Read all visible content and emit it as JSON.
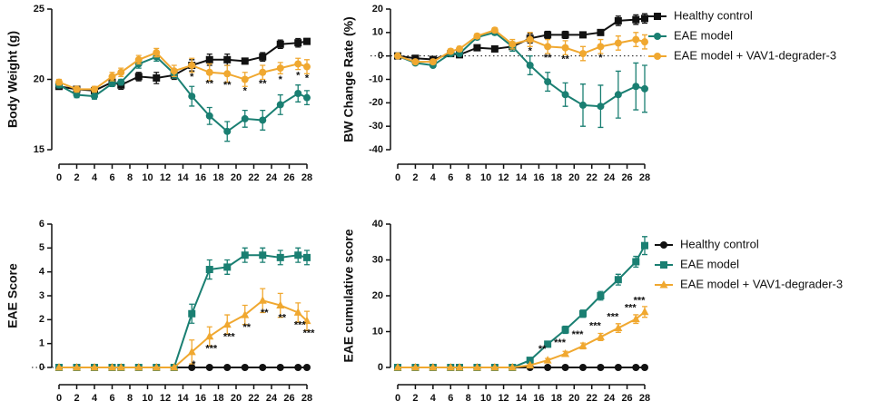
{
  "chart_data": [
    {
      "type": "line",
      "ylabel": "Body Weight (g)",
      "x": [
        0,
        2,
        4,
        6,
        7,
        9,
        11,
        13,
        15,
        17,
        19,
        21,
        23,
        25,
        27,
        28
      ],
      "xlim": [
        0,
        28
      ],
      "xticks": [
        0,
        2,
        4,
        6,
        8,
        10,
        12,
        14,
        16,
        18,
        20,
        22,
        24,
        26,
        28
      ],
      "ylim": [
        15,
        25
      ],
      "yticks": [
        15,
        20,
        25
      ],
      "series": [
        {
          "color": "#111111",
          "marker": "square",
          "values": [
            19.5,
            19.3,
            19.2,
            19.8,
            19.6,
            20.2,
            20.1,
            20.3,
            21.0,
            21.4,
            21.4,
            21.3,
            21.6,
            22.5,
            22.6,
            22.7
          ],
          "errors": [
            0.2,
            0.2,
            0.2,
            0.3,
            0.3,
            0.3,
            0.4,
            0.3,
            0.4,
            0.4,
            0.4,
            0.2,
            0.3,
            0.3,
            0.3,
            0.2
          ]
        },
        {
          "color": "#1a7f72",
          "marker": "circle",
          "values": [
            19.6,
            18.9,
            18.8,
            19.7,
            19.8,
            21.1,
            21.6,
            20.4,
            18.8,
            17.4,
            16.3,
            17.2,
            17.1,
            18.2,
            19.0,
            18.7
          ],
          "errors": [
            0.2,
            0.2,
            0.2,
            0.2,
            0.2,
            0.3,
            0.3,
            0.3,
            0.7,
            0.6,
            0.7,
            0.6,
            0.7,
            0.7,
            0.6,
            0.5
          ]
        },
        {
          "color": "#f0a830",
          "marker": "circle",
          "values": [
            19.8,
            19.3,
            19.3,
            20.2,
            20.5,
            21.4,
            21.9,
            20.6,
            21.0,
            20.5,
            20.4,
            20.0,
            20.5,
            20.8,
            21.1,
            20.9
          ],
          "errors": [
            0.2,
            0.2,
            0.2,
            0.3,
            0.3,
            0.3,
            0.3,
            0.4,
            0.5,
            0.6,
            0.6,
            0.5,
            0.5,
            0.4,
            0.4,
            0.5
          ]
        }
      ],
      "annotations": [
        {
          "x": 15,
          "text": "*"
        },
        {
          "x": 17,
          "text": "**"
        },
        {
          "x": 19,
          "text": "**"
        },
        {
          "x": 21,
          "text": "*"
        },
        {
          "x": 23,
          "text": "**"
        },
        {
          "x": 25,
          "text": "*"
        },
        {
          "x": 27,
          "text": "*"
        },
        {
          "x": 28,
          "text": "*"
        }
      ]
    },
    {
      "type": "line",
      "ylabel": "BW Change Rate (%)",
      "x": [
        0,
        2,
        4,
        6,
        7,
        9,
        11,
        13,
        15,
        17,
        19,
        21,
        23,
        25,
        27,
        28
      ],
      "xlim": [
        0,
        28
      ],
      "xticks": [
        0,
        2,
        4,
        6,
        8,
        10,
        12,
        14,
        16,
        18,
        20,
        22,
        24,
        26,
        28
      ],
      "ylim": [
        -40,
        20
      ],
      "yticks": [
        -40,
        -30,
        -20,
        -10,
        0,
        10,
        20
      ],
      "zero_line": true,
      "legend": "right",
      "series": [
        {
          "name": "Healthy control",
          "color": "#111111",
          "marker": "square",
          "values": [
            0,
            -1,
            -1.5,
            1,
            0.5,
            3.5,
            3,
            4,
            7.5,
            9,
            9,
            9,
            10,
            15,
            15.5,
            16
          ],
          "errors": [
            0,
            0.5,
            0.5,
            0.5,
            0.5,
            0.5,
            1,
            1,
            2,
            1.5,
            1.5,
            1,
            1,
            2,
            2,
            2
          ]
        },
        {
          "name": "EAE model",
          "color": "#1a7f72",
          "marker": "circle",
          "values": [
            0,
            -3,
            -4,
            1,
            1,
            8,
            10,
            4,
            -4,
            -11,
            -16.5,
            -21,
            -21.5,
            -16.5,
            -13,
            -14
          ],
          "errors": [
            0,
            0.5,
            0.5,
            1,
            1,
            1,
            1,
            2,
            4,
            4,
            5,
            9,
            9,
            10,
            10,
            10
          ]
        },
        {
          "name": "EAE model + VAV1-degrader-3",
          "color": "#f0a830",
          "marker": "circle",
          "values": [
            0,
            -2.5,
            -2.5,
            2,
            3,
            8.5,
            11,
            5,
            7,
            4,
            3.5,
            1,
            4,
            5.5,
            7,
            6
          ],
          "errors": [
            0,
            0.5,
            0.5,
            1,
            1,
            1,
            1,
            2,
            3,
            3,
            3,
            3,
            3,
            3,
            3,
            3
          ]
        }
      ],
      "annotations": [
        {
          "x": 15,
          "text": "*"
        },
        {
          "x": 17,
          "text": "**"
        },
        {
          "x": 19,
          "text": "**"
        },
        {
          "x": 23,
          "text": "*"
        }
      ]
    },
    {
      "type": "line",
      "ylabel": "EAE Score",
      "x": [
        0,
        2,
        4,
        6,
        7,
        9,
        11,
        13,
        15,
        17,
        19,
        21,
        23,
        25,
        27,
        28
      ],
      "xlim": [
        0,
        28
      ],
      "xticks": [
        0,
        2,
        4,
        6,
        8,
        10,
        12,
        14,
        16,
        18,
        20,
        22,
        24,
        26,
        28
      ],
      "ylim": [
        0,
        6
      ],
      "yticks": [
        0,
        1,
        2,
        3,
        4,
        5,
        6
      ],
      "zero_line": true,
      "series": [
        {
          "color": "#111111",
          "marker": "circle",
          "values": [
            0,
            0,
            0,
            0,
            0,
            0,
            0,
            0,
            0,
            0,
            0,
            0,
            0,
            0,
            0,
            0
          ],
          "errors": [
            0,
            0,
            0,
            0,
            0,
            0,
            0,
            0,
            0,
            0,
            0,
            0,
            0,
            0,
            0,
            0
          ]
        },
        {
          "color": "#1a7f72",
          "marker": "square",
          "values": [
            0,
            0,
            0,
            0,
            0,
            0,
            0,
            0,
            2.25,
            4.1,
            4.2,
            4.7,
            4.7,
            4.6,
            4.7,
            4.6
          ],
          "errors": [
            0,
            0,
            0,
            0,
            0,
            0,
            0,
            0,
            0.4,
            0.4,
            0.3,
            0.3,
            0.3,
            0.3,
            0.3,
            0.3
          ]
        },
        {
          "color": "#f0a830",
          "marker": "triangle",
          "values": [
            0,
            0,
            0,
            0,
            0,
            0,
            0,
            0,
            0.65,
            1.3,
            1.8,
            2.2,
            2.8,
            2.6,
            2.3,
            1.95
          ],
          "errors": [
            0,
            0,
            0,
            0,
            0,
            0,
            0,
            0,
            0.5,
            0.4,
            0.4,
            0.4,
            0.5,
            0.5,
            0.4,
            0.4
          ]
        }
      ],
      "annotations": [
        {
          "x": 15,
          "text": "*"
        },
        {
          "x": 17,
          "text": "***"
        },
        {
          "x": 19,
          "text": "***"
        },
        {
          "x": 21,
          "text": "**"
        },
        {
          "x": 23,
          "text": "**"
        },
        {
          "x": 25,
          "text": "**"
        },
        {
          "x": 27,
          "text": "***"
        },
        {
          "x": 28,
          "text": "***"
        }
      ]
    },
    {
      "type": "line",
      "ylabel": "EAE cumulative score",
      "x": [
        0,
        2,
        4,
        6,
        7,
        9,
        11,
        13,
        15,
        17,
        19,
        21,
        23,
        25,
        27,
        28
      ],
      "xlim": [
        0,
        28
      ],
      "xticks": [
        0,
        2,
        4,
        6,
        8,
        10,
        12,
        14,
        16,
        18,
        20,
        22,
        24,
        26,
        28
      ],
      "ylim": [
        0,
        40
      ],
      "yticks": [
        0,
        10,
        20,
        30,
        40
      ],
      "legend": "right",
      "series": [
        {
          "name": "Healthy control",
          "color": "#111111",
          "marker": "circle",
          "values": [
            0,
            0,
            0,
            0,
            0,
            0,
            0,
            0,
            0,
            0,
            0,
            0,
            0,
            0,
            0,
            0
          ],
          "errors": [
            0,
            0,
            0,
            0,
            0,
            0,
            0,
            0,
            0,
            0,
            0,
            0,
            0,
            0,
            0,
            0
          ]
        },
        {
          "name": "EAE model",
          "color": "#1a7f72",
          "marker": "square",
          "values": [
            0,
            0,
            0,
            0,
            0,
            0,
            0,
            0,
            2,
            6.5,
            10.5,
            15,
            20,
            24.5,
            29.5,
            34
          ],
          "errors": [
            0,
            0,
            0,
            0,
            0,
            0,
            0,
            0,
            0.5,
            0.8,
            1,
            1,
            1.2,
            1.5,
            1.5,
            2.5
          ]
        },
        {
          "name": "EAE model + VAV1-degrader-3",
          "color": "#f0a830",
          "marker": "triangle",
          "values": [
            0,
            0,
            0,
            0,
            0,
            0,
            0,
            0,
            0.6,
            2,
            3.8,
            6,
            8.5,
            11,
            13.5,
            15.5
          ],
          "errors": [
            0,
            0,
            0,
            0,
            0,
            0,
            0,
            0,
            0.3,
            0.5,
            0.7,
            0.8,
            1,
            1.2,
            1.2,
            1.5
          ]
        }
      ],
      "annotations": [
        {
          "x": 17,
          "text": "**"
        },
        {
          "x": 19,
          "text": "***"
        },
        {
          "x": 21,
          "text": "***"
        },
        {
          "x": 23,
          "text": "***"
        },
        {
          "x": 25,
          "text": "***"
        },
        {
          "x": 27,
          "text": "***"
        },
        {
          "x": 28,
          "text": "***"
        }
      ]
    }
  ]
}
